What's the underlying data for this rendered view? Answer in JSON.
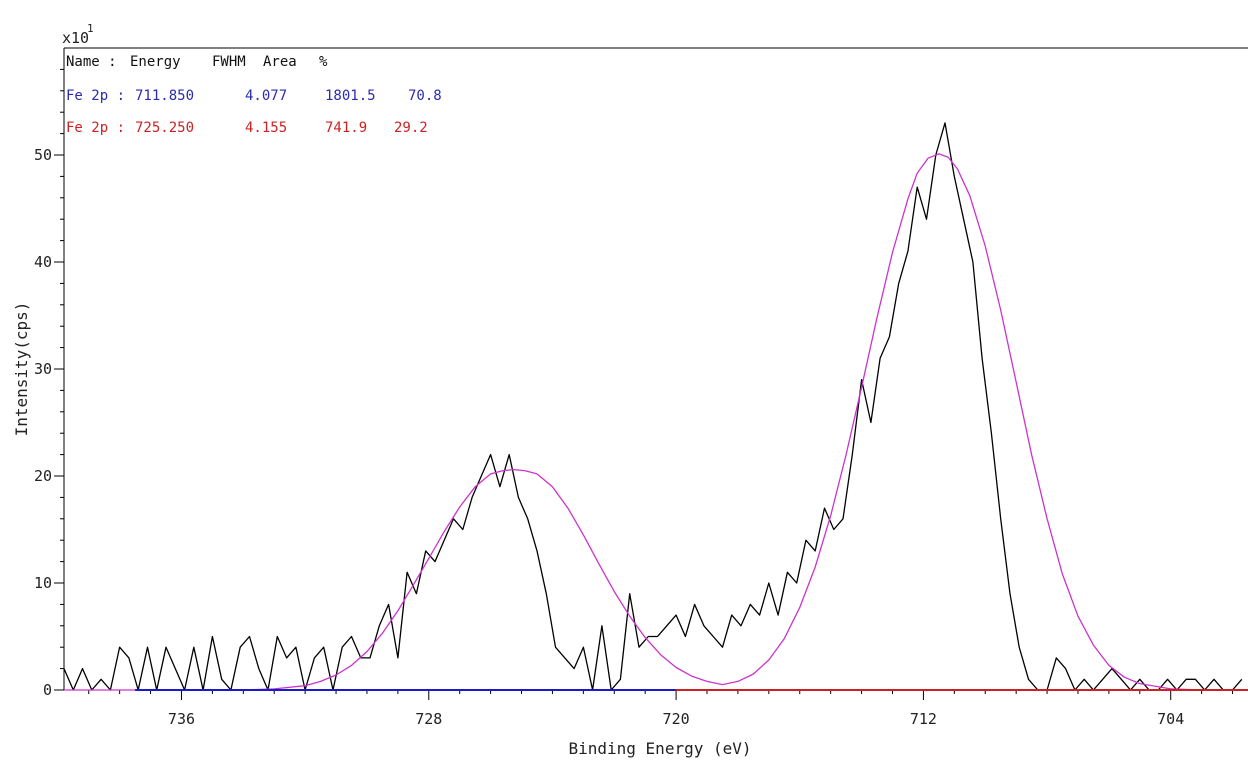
{
  "chart_data": {
    "type": "line",
    "xlabel": "Binding Energy (eV)",
    "ylabel": "Intensity(cps)",
    "y_multiplier": "x10",
    "y_multiplier_exp": "1",
    "xlim": [
      739.8,
      701.5
    ],
    "ylim": [
      0,
      60
    ],
    "x_reversed": true,
    "x_ticks": [
      736,
      728,
      720,
      712,
      704
    ],
    "x_tick_labels": [
      "736",
      "728",
      "720",
      "712",
      "704"
    ],
    "y_ticks": [
      0,
      10,
      20,
      30,
      40,
      50
    ],
    "y_tick_labels": [
      "0",
      "10",
      "20",
      "30",
      "40",
      "50"
    ],
    "legend": {
      "header": [
        "Name :",
        "Energy",
        "FWHM",
        "Area",
        "%"
      ],
      "rows": [
        {
          "name": "Fe 2p :",
          "energy": "711.850",
          "fwhm": "4.077",
          "area": "1801.5",
          "percent": "70.8",
          "color": "#2b2bb0"
        },
        {
          "name": "Fe 2p :",
          "energy": "725.250",
          "fwhm": "4.155",
          "area": "741.9",
          "percent": "29.2",
          "color": "#cc2222"
        }
      ]
    },
    "series": [
      {
        "color": "#000000",
        "x": [
          739.8,
          739.5,
          739.2,
          738.9,
          738.6,
          738.3,
          738.0,
          737.7,
          737.4,
          737.1,
          736.8,
          736.5,
          736.2,
          735.9,
          735.6,
          735.3,
          735.0,
          734.7,
          734.4,
          734.1,
          733.8,
          733.5,
          733.2,
          732.9,
          732.6,
          732.3,
          732.0,
          731.7,
          731.4,
          731.1,
          730.8,
          730.5,
          730.2,
          729.9,
          729.6,
          729.3,
          729.0,
          728.7,
          728.4,
          728.1,
          727.8,
          727.5,
          727.2,
          726.9,
          726.6,
          726.3,
          726.0,
          725.7,
          725.4,
          725.1,
          724.8,
          724.5,
          724.2,
          723.9,
          723.6,
          723.3,
          723.0,
          722.7,
          722.4,
          722.1,
          721.8,
          721.5,
          721.2,
          720.9,
          720.6,
          720.3,
          720.0,
          719.7,
          719.4,
          719.1,
          718.8,
          718.5,
          718.2,
          717.9,
          717.6,
          717.3,
          717.0,
          716.7,
          716.4,
          716.1,
          715.8,
          715.5,
          715.2,
          714.9,
          714.6,
          714.3,
          714.0,
          713.7,
          713.4,
          713.1,
          712.8,
          712.5,
          712.2,
          711.9,
          711.6,
          711.3,
          711.0,
          710.7,
          710.4,
          710.1,
          709.8,
          709.5,
          709.2,
          708.9,
          708.6,
          708.3,
          708.0,
          707.7,
          707.4,
          707.1,
          706.8,
          706.5,
          706.2,
          705.9,
          705.6,
          705.3,
          705.0,
          704.7,
          704.4,
          704.1,
          703.8,
          703.5,
          703.2,
          702.9,
          702.6,
          702.3,
          702.0,
          701.7
        ],
        "y": [
          2,
          0,
          2,
          0,
          1,
          0,
          4,
          3,
          0,
          4,
          0,
          4,
          2,
          0,
          4,
          0,
          5,
          1,
          0,
          4,
          5,
          2,
          0,
          5,
          3,
          4,
          0,
          3,
          4,
          0,
          4,
          5,
          3,
          3,
          6,
          8,
          3,
          11,
          9,
          13,
          12,
          14,
          16,
          15,
          18,
          20,
          22,
          19,
          22,
          18,
          16,
          13,
          9,
          4,
          3,
          2,
          4,
          0,
          6,
          0,
          1,
          9,
          4,
          5,
          5,
          6,
          7,
          5,
          8,
          6,
          5,
          4,
          7,
          6,
          8,
          7,
          10,
          7,
          11,
          10,
          14,
          13,
          17,
          15,
          16,
          22,
          29,
          25,
          31,
          33,
          38,
          41,
          47,
          44,
          50,
          53,
          48,
          44,
          40,
          31,
          24,
          16,
          9,
          4,
          1,
          0,
          0,
          3,
          2,
          0,
          1,
          0,
          1,
          2,
          1,
          0,
          1,
          0,
          0,
          1,
          0,
          1,
          1,
          0,
          1,
          0,
          0,
          1
        ]
      },
      {
        "color": "#cc33cc",
        "x": [
          739.8,
          739.0,
          738.0,
          737.0,
          736.0,
          735.0,
          734.0,
          733.0,
          732.0,
          731.5,
          731.0,
          730.5,
          730.0,
          729.5,
          729.0,
          728.5,
          728.0,
          727.5,
          727.0,
          726.5,
          726.0,
          725.6,
          725.25,
          724.9,
          724.5,
          724.0,
          723.5,
          723.0,
          722.5,
          722.0,
          721.5,
          721.0,
          720.5,
          720.0,
          719.5,
          719.0,
          718.5,
          718.0,
          717.5,
          717.0,
          716.5,
          716.0,
          715.5,
          715.0,
          714.5,
          714.0,
          713.5,
          713.0,
          712.5,
          712.2,
          711.85,
          711.5,
          711.2,
          710.9,
          710.5,
          710.0,
          709.5,
          709.0,
          708.5,
          708.0,
          707.5,
          707.0,
          706.5,
          706.0,
          705.5,
          705.0,
          704.0,
          703.0,
          702.0,
          701.5
        ],
        "y": [
          0,
          0,
          0,
          0,
          0,
          0,
          0,
          0.1,
          0.4,
          0.8,
          1.4,
          2.3,
          3.6,
          5.3,
          7.4,
          9.8,
          12.3,
          14.8,
          17.1,
          19.0,
          20.2,
          20.5,
          20.6,
          20.5,
          20.2,
          19.0,
          17.0,
          14.5,
          11.8,
          9.2,
          6.9,
          4.9,
          3.3,
          2.1,
          1.3,
          0.8,
          0.5,
          0.8,
          1.5,
          2.8,
          4.8,
          7.7,
          11.5,
          16.3,
          22.0,
          28.3,
          34.8,
          40.9,
          45.9,
          48.3,
          49.7,
          50.1,
          49.8,
          48.7,
          46.2,
          41.5,
          35.5,
          28.8,
          22.0,
          16.0,
          10.8,
          6.9,
          4.2,
          2.3,
          1.2,
          0.6,
          0.1,
          0,
          0,
          0
        ]
      },
      {
        "color": "#1a1acc",
        "x": [
          737.5,
          720.0
        ],
        "y": [
          0,
          0
        ]
      },
      {
        "color": "#cc2222",
        "x": [
          720.0,
          701.5
        ],
        "y": [
          0,
          0
        ]
      }
    ]
  }
}
